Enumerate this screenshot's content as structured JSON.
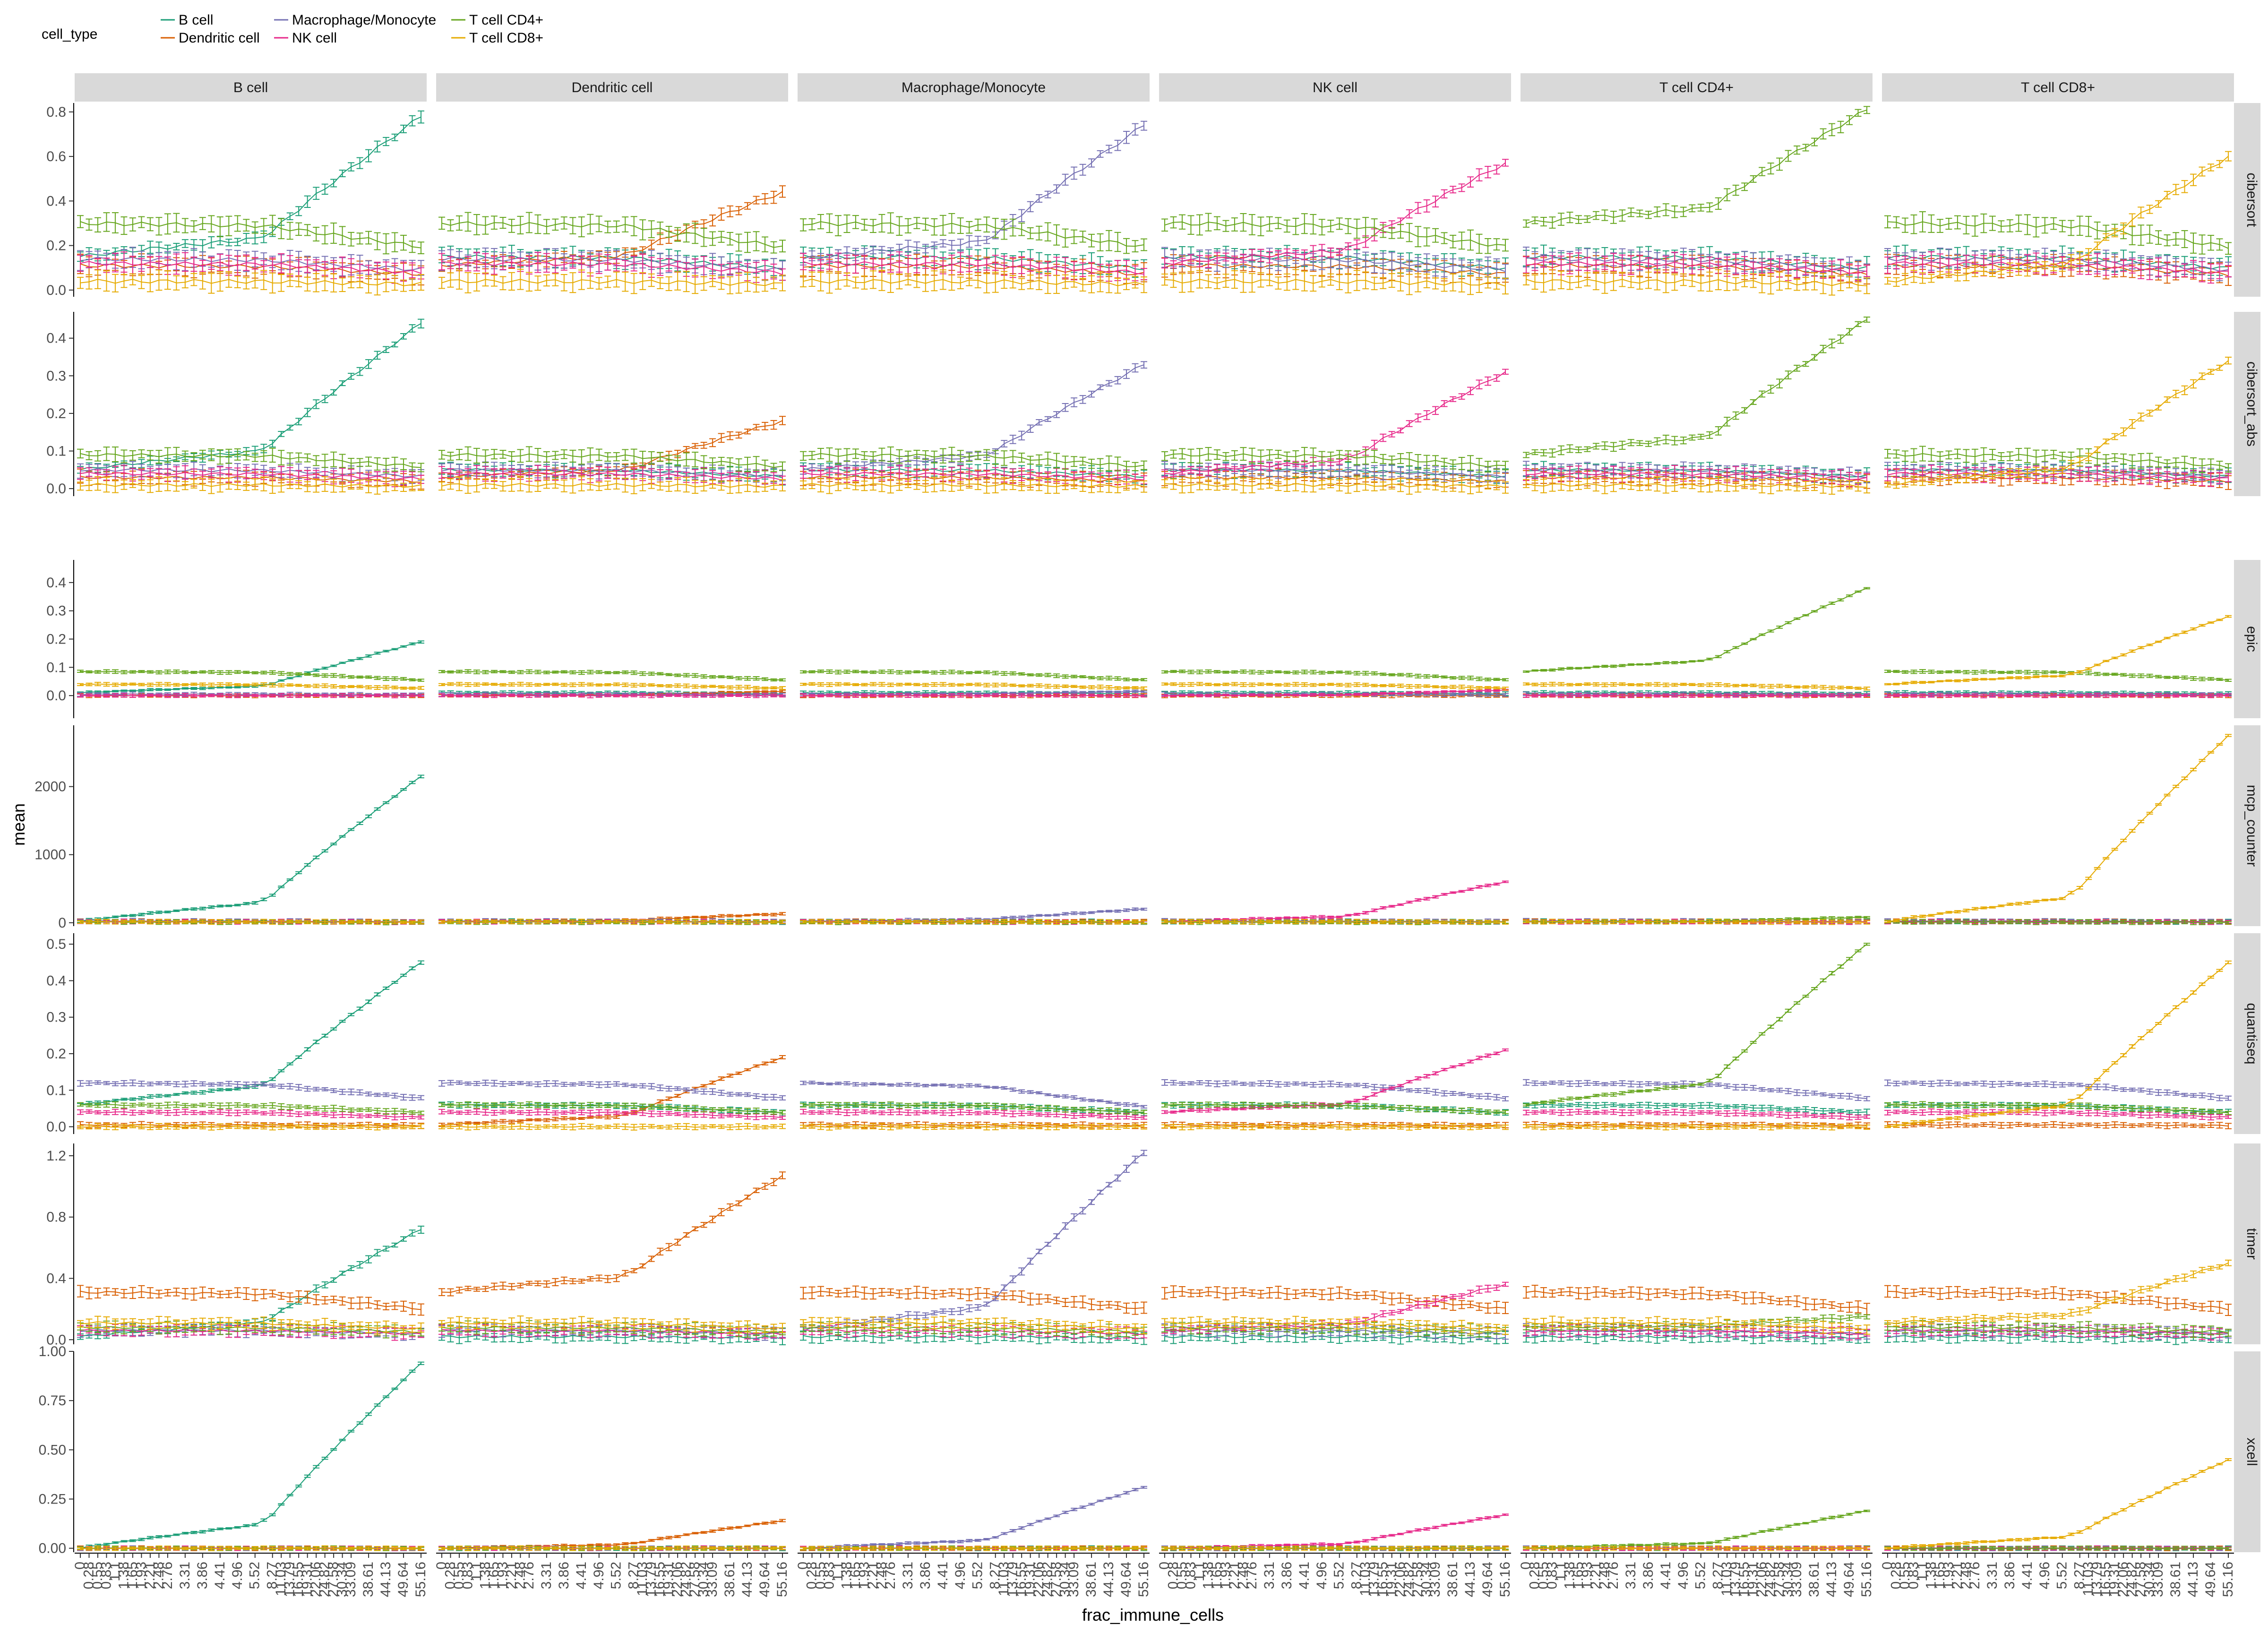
{
  "chart_data": {
    "type": "line",
    "title": "",
    "xlabel": "frac_immune_cells",
    "ylabel": "mean",
    "legend": {
      "title": "cell_type",
      "position": "top-left"
    },
    "columns": [
      "B cell",
      "Dendritic cell",
      "Macrophage/Monocyte",
      "NK cell",
      "T cell CD4+",
      "T cell CD8+"
    ],
    "rows": [
      "cibersort",
      "cibersort_abs",
      "epic",
      "mcp_counter",
      "quantiseq",
      "timer",
      "xcell"
    ],
    "x": [
      "0",
      "0.28",
      "0.55",
      "0.83",
      "1.1",
      "1.38",
      "1.65",
      "1.93",
      "2.21",
      "2.48",
      "2.76",
      "3.03",
      "3.31",
      "3.59",
      "3.86",
      "4.14",
      "4.41",
      "4.69",
      "4.96",
      "5.24",
      "5.52",
      "6.9",
      "8.27",
      "11.03",
      "13.79",
      "16.55",
      "19.31",
      "22.06",
      "24.82",
      "27.58",
      "30.34",
      "33.09",
      "35.85",
      "38.61",
      "41.37",
      "44.13",
      "46.89",
      "49.64",
      "52.4",
      "55.16"
    ],
    "x_tick_labels": [
      "0",
      "0.28",
      "0.55",
      "0.83",
      "1.1",
      "1.38",
      "1.65",
      "1.93",
      "2.21",
      "2.48",
      "2.76",
      "3.31",
      "3.86",
      "4.41",
      "4.96",
      "5.52",
      "8.27",
      "11.03",
      "13.79",
      "16.55",
      "19.31",
      "22.06",
      "24.82",
      "27.58",
      "30.34",
      "33.09",
      "38.61",
      "44.13",
      "49.64",
      "55.16"
    ],
    "series_names": [
      "B cell",
      "Dendritic cell",
      "Macrophage/Monocyte",
      "NK cell",
      "T cell CD4+",
      "T cell CD8+"
    ],
    "colors": {
      "B cell": "#1b9e77",
      "Dendritic cell": "#d95f02",
      "Macrophage/Monocyte": "#7570b3",
      "NK cell": "#e7298a",
      "T cell CD4+": "#66a61e",
      "T cell CD8+": "#e6ab02"
    },
    "ylim": {
      "cibersort": [
        -0.03,
        0.84
      ],
      "cibersort_abs": [
        -0.02,
        0.47
      ],
      "epic": [
        -0.08,
        0.48
      ],
      "mcp_counter": [
        -50,
        2900
      ],
      "quantiseq": [
        -0.02,
        0.53
      ],
      "timer": [
        -0.03,
        1.28
      ],
      "xcell": [
        -0.02,
        1.0
      ]
    },
    "yticks": {
      "cibersort": [
        "0.0",
        "0.2",
        "0.4",
        "0.6",
        "0.8"
      ],
      "cibersort_abs": [
        "0.0",
        "0.1",
        "0.2",
        "0.3",
        "0.4"
      ],
      "epic": [
        "0.0",
        "0.1",
        "0.2",
        "0.3",
        "0.4"
      ],
      "mcp_counter": [
        "0",
        "1000",
        "2000"
      ],
      "quantiseq": [
        "0.0",
        "0.1",
        "0.2",
        "0.3",
        "0.4",
        "0.5"
      ],
      "timer": [
        "0.0",
        "0.4",
        "0.8",
        "1.2"
      ],
      "xcell": [
        "0.00",
        "0.25",
        "0.50",
        "0.75",
        "1.00"
      ]
    },
    "baseline": {
      "cibersort": {
        "B cell": 0.15,
        "Dendritic cell": 0.11,
        "Macrophage/Monocyte": 0.14,
        "NK cell": 0.12,
        "T cell CD4+": 0.3,
        "T cell CD8+": 0.04
      },
      "cibersort_abs": {
        "B cell": 0.05,
        "Dendritic cell": 0.03,
        "Macrophage/Monocyte": 0.05,
        "NK cell": 0.04,
        "T cell CD4+": 0.09,
        "T cell CD8+": 0.01
      },
      "epic": {
        "B cell": 0.01,
        "Dendritic cell": 0.0,
        "Macrophage/Monocyte": 0.005,
        "NK cell": 0.0,
        "T cell CD4+": 0.085,
        "T cell CD8+": 0.04
      },
      "mcp_counter": {
        "B cell": 20,
        "Dendritic cell": 20,
        "Macrophage/Monocyte": 25,
        "NK cell": 15,
        "T cell CD4+": 10,
        "T cell CD8+": 15
      },
      "quantiseq": {
        "B cell": 0.06,
        "Dendritic cell": 0.005,
        "Macrophage/Monocyte": 0.12,
        "NK cell": 0.04,
        "T cell CD4+": 0.06,
        "T cell CD8+": 0.0
      },
      "timer": {
        "B cell": 0.02,
        "Dendritic cell": 0.31,
        "Macrophage/Monocyte": 0.06,
        "NK cell": 0.06,
        "T cell CD4+": 0.08,
        "T cell CD8+": 0.11
      },
      "xcell": {
        "B cell": 0.0,
        "Dendritic cell": 0.0,
        "Macrophage/Monocyte": 0.0,
        "NK cell": 0.0,
        "T cell CD4+": 0.0,
        "T cell CD8+": 0.0
      }
    },
    "target_value_at_max": {
      "cibersort": [
        0.78,
        0.44,
        0.74,
        0.57,
        0.81,
        0.6
      ],
      "cibersort_abs": [
        0.44,
        0.18,
        0.33,
        0.31,
        0.45,
        0.34
      ],
      "epic": [
        0.19,
        0.015,
        0.015,
        0.02,
        0.38,
        0.28
      ],
      "mcp_counter": [
        2150,
        130,
        200,
        600,
        80,
        2750
      ],
      "quantiseq": [
        0.45,
        0.19,
        0.055,
        0.21,
        0.5,
        0.45
      ],
      "timer": [
        0.72,
        1.07,
        1.22,
        0.36,
        0.15,
        0.5
      ],
      "xcell": [
        0.94,
        0.14,
        0.31,
        0.17,
        0.19,
        0.45
      ]
    },
    "ci_halfwidth": {
      "cibersort": 0.035,
      "cibersort_abs": 0.015,
      "epic": 0.005,
      "mcp_counter": 25,
      "quantiseq": 0.006,
      "timer": 0.03,
      "xcell": 0.008
    }
  }
}
